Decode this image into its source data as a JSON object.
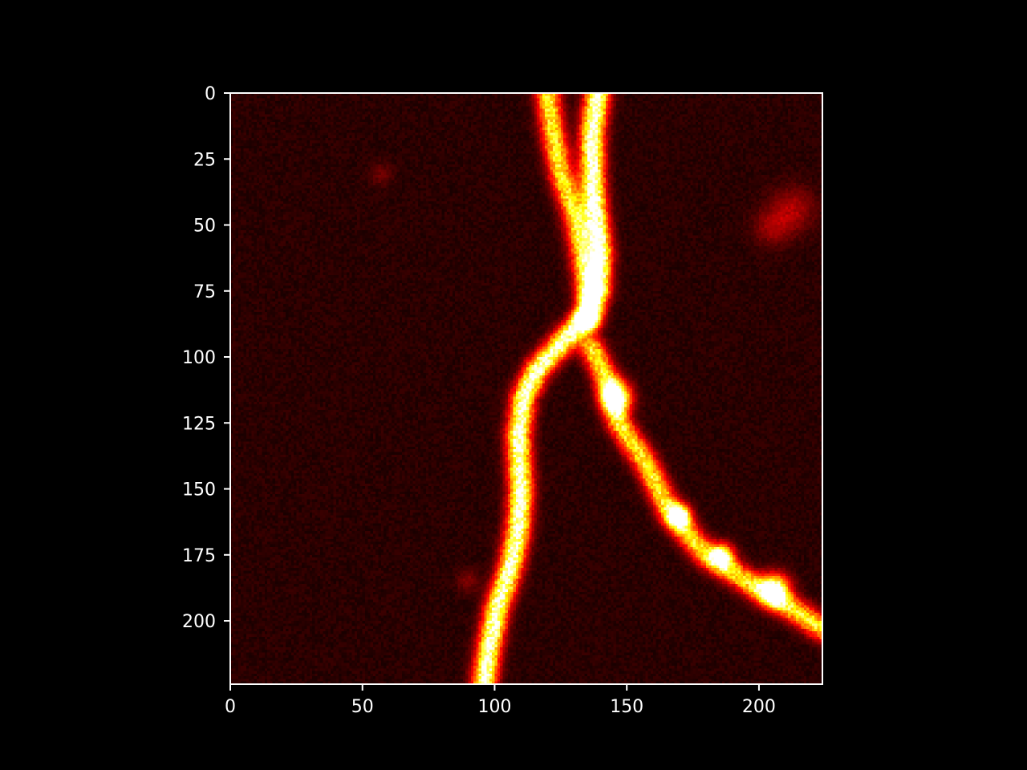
{
  "chart_data": {
    "type": "heatmap",
    "title": "",
    "xlabel": "",
    "ylabel": "",
    "colormap": "hot",
    "image_shape": [
      224,
      224
    ],
    "xlim": [
      0,
      224
    ],
    "ylim": [
      224,
      0
    ],
    "x_ticks": [
      0,
      50,
      100,
      150,
      200
    ],
    "y_ticks": [
      0,
      25,
      50,
      75,
      100,
      125,
      150,
      175,
      200
    ],
    "x_tick_labels": [
      "0",
      "50",
      "100",
      "150",
      "200"
    ],
    "y_tick_labels": [
      "0",
      "25",
      "50",
      "75",
      "100",
      "125",
      "150",
      "175",
      "200"
    ],
    "background_level": 0.06,
    "structures": [
      {
        "name": "left-upper-branch",
        "intensity": 0.72,
        "points": [
          [
            120,
            0
          ],
          [
            122,
            15
          ],
          [
            125,
            30
          ],
          [
            130,
            45
          ],
          [
            133,
            60
          ],
          [
            135,
            75
          ]
        ]
      },
      {
        "name": "right-upper-branch",
        "intensity": 1.0,
        "points": [
          [
            139,
            0
          ],
          [
            137,
            15
          ],
          [
            137,
            30
          ],
          [
            138,
            45
          ],
          [
            140,
            60
          ],
          [
            139,
            75
          ],
          [
            135,
            85
          ]
        ]
      },
      {
        "name": "main-trunk",
        "intensity": 0.95,
        "points": [
          [
            135,
            85
          ],
          [
            125,
            95
          ],
          [
            116,
            105
          ],
          [
            111,
            115
          ],
          [
            109,
            130
          ],
          [
            110,
            150
          ],
          [
            109,
            165
          ],
          [
            106,
            180
          ],
          [
            101,
            195
          ],
          [
            98,
            210
          ],
          [
            96,
            224
          ]
        ]
      },
      {
        "name": "right-lower-branch",
        "intensity": 0.72,
        "points": [
          [
            137,
            97
          ],
          [
            143,
            110
          ],
          [
            147,
            125
          ],
          [
            157,
            140
          ],
          [
            167,
            160
          ],
          [
            180,
            175
          ],
          [
            200,
            188
          ],
          [
            215,
            197
          ],
          [
            224,
            203
          ]
        ]
      }
    ],
    "blobs": [
      {
        "x": 146,
        "y": 115,
        "r": 4,
        "intensity": 0.85
      },
      {
        "x": 170,
        "y": 160,
        "r": 3,
        "intensity": 0.8
      },
      {
        "x": 186,
        "y": 175,
        "r": 3,
        "intensity": 0.8
      },
      {
        "x": 206,
        "y": 188,
        "r": 4,
        "intensity": 0.85
      },
      {
        "x": 213,
        "y": 44,
        "r": 6,
        "intensity": 0.18
      },
      {
        "x": 205,
        "y": 51,
        "r": 5,
        "intensity": 0.15
      },
      {
        "x": 90,
        "y": 185,
        "r": 3,
        "intensity": 0.12
      },
      {
        "x": 57,
        "y": 31,
        "r": 3,
        "intensity": 0.1
      }
    ]
  }
}
